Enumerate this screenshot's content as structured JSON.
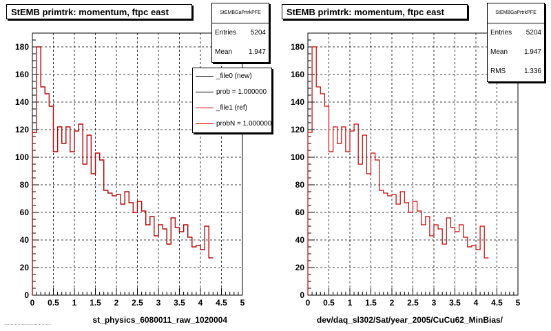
{
  "footnote": "...................................",
  "chart_data": [
    {
      "type": "bar",
      "title": "StEMB primtrk: momentum, ftpc east",
      "xlabel": "st_physics_6080011_raw_1020004",
      "ylabel": "",
      "xlim": [
        0,
        5
      ],
      "ylim": [
        0,
        190
      ],
      "grid": true,
      "x_ticks": [
        "0",
        "0.5",
        "1",
        "1.5",
        "2",
        "2.5",
        "3",
        "3.5",
        "4",
        "4.5",
        "5"
      ],
      "y_ticks": [
        "0",
        "20",
        "40",
        "60",
        "80",
        "100",
        "120",
        "140",
        "160",
        "180"
      ],
      "bin_width": 0.1,
      "series": [
        {
          "name": "_file0 (new)",
          "color": "#000000",
          "values": [
            118,
            180,
            151,
            146,
            137,
            104,
            122,
            110,
            122,
            104,
            119,
            124,
            95,
            116,
            88,
            103,
            98,
            76,
            74,
            72,
            73,
            66,
            75,
            67,
            60,
            68,
            61,
            51,
            57,
            43,
            51,
            48,
            37,
            56,
            49,
            46,
            51,
            42,
            35,
            36,
            33,
            50,
            27
          ]
        },
        {
          "name": "_file1 (ref)",
          "color": "#cc0000",
          "values": [
            118,
            180,
            151,
            146,
            137,
            104,
            122,
            110,
            122,
            104,
            119,
            124,
            95,
            116,
            88,
            103,
            98,
            76,
            74,
            72,
            73,
            66,
            75,
            67,
            60,
            68,
            61,
            51,
            57,
            43,
            51,
            48,
            37,
            56,
            49,
            46,
            51,
            42,
            35,
            36,
            33,
            50,
            27
          ]
        }
      ],
      "legend": [
        {
          "label": "_file0 (new)",
          "color": "#000000"
        },
        {
          "label": "prob = 1.000000",
          "color": "#000000"
        },
        {
          "label": "_file1 (ref)",
          "color": "#cc0000"
        },
        {
          "label": "probN = 1.000000",
          "color": "#cc0000"
        }
      ],
      "stats": {
        "name": "StEMBGaPrtrkPFE",
        "entries_label": "Entries",
        "entries": "5204",
        "mean_label": "Mean",
        "mean": "1.947"
      }
    },
    {
      "type": "bar",
      "title": "StEMB primtrk: momentum, ftpc east",
      "xlabel": "dev/daq_sl302/Sat/year_2005/CuCu62_MinBias/",
      "ylabel": "",
      "xlim": [
        0,
        5
      ],
      "ylim": [
        0,
        190
      ],
      "grid": true,
      "x_ticks": [
        "0",
        "0.5",
        "1",
        "1.5",
        "2",
        "2.5",
        "3",
        "3.5",
        "4",
        "4.5",
        "5"
      ],
      "y_ticks": [
        "0",
        "20",
        "40",
        "60",
        "80",
        "100",
        "120",
        "140",
        "160",
        "180"
      ],
      "bin_width": 0.1,
      "series": [
        {
          "name": "",
          "color": "#cc0000",
          "values": [
            118,
            180,
            151,
            146,
            137,
            104,
            122,
            110,
            122,
            104,
            119,
            124,
            95,
            116,
            88,
            103,
            98,
            76,
            74,
            72,
            73,
            66,
            75,
            67,
            60,
            68,
            61,
            51,
            57,
            43,
            51,
            48,
            37,
            56,
            49,
            46,
            51,
            42,
            35,
            36,
            33,
            50,
            27
          ]
        }
      ],
      "legend": [],
      "stats": {
        "name": "StEMBGaPrtrkPFE",
        "entries_label": "Entries",
        "entries": "5204",
        "mean_label": "Mean",
        "mean": "1.947",
        "rms_label": "RMS",
        "rms": "1.336"
      }
    }
  ]
}
